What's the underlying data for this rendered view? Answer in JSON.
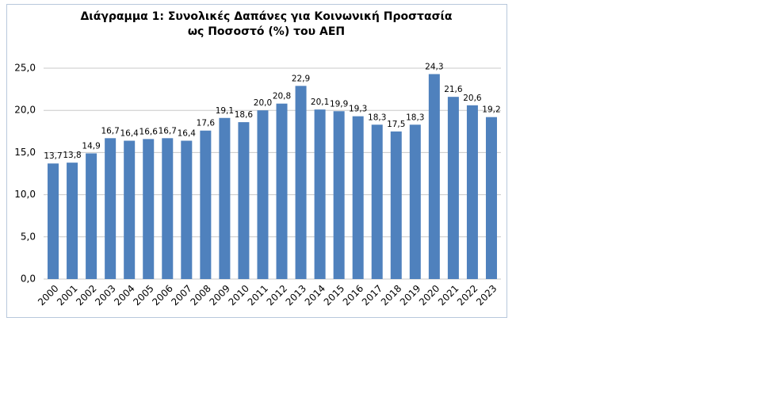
{
  "chart_data": {
    "type": "bar",
    "title": [
      "Διάγραμμα 1: Συνολικές Δαπάνες για Κοινωνική Προστασία",
      "ως Ποσοστό (%) του ΑΕΠ"
    ],
    "categories": [
      "2000",
      "2001",
      "2002",
      "2003",
      "2004",
      "2005",
      "2006",
      "2007",
      "2008",
      "2009",
      "2010",
      "2011",
      "2012",
      "2013",
      "2014",
      "2015",
      "2016",
      "2017",
      "2018",
      "2019",
      "2020",
      "2021",
      "2022",
      "2023"
    ],
    "values": [
      13.7,
      13.8,
      14.9,
      16.7,
      16.4,
      16.6,
      16.7,
      16.4,
      17.6,
      19.1,
      18.6,
      20.0,
      20.8,
      22.9,
      20.1,
      19.9,
      19.3,
      18.3,
      17.5,
      18.3,
      24.3,
      21.6,
      20.6,
      19.2
    ],
    "value_labels": [
      "13,7",
      "13,8",
      "14,9",
      "16,7",
      "16,4",
      "16,6",
      "16,7",
      "16,4",
      "17,6",
      "19,1",
      "18,6",
      "20,0",
      "20,8",
      "22,9",
      "20,1",
      "19,9",
      "19,3",
      "18,3",
      "17,5",
      "18,3",
      "24,3",
      "21,6",
      "20,6",
      "19,2"
    ],
    "color": "#4f81bd",
    "ylim": [
      0,
      25
    ],
    "yticks": [
      {
        "value": 0,
        "label": "0,0"
      },
      {
        "value": 5,
        "label": "5,0"
      },
      {
        "value": 10,
        "label": "10,0"
      },
      {
        "value": 15,
        "label": "15,0"
      },
      {
        "value": 20,
        "label": "20,0"
      },
      {
        "value": 25,
        "label": "25,0"
      }
    ],
    "grid": true
  }
}
